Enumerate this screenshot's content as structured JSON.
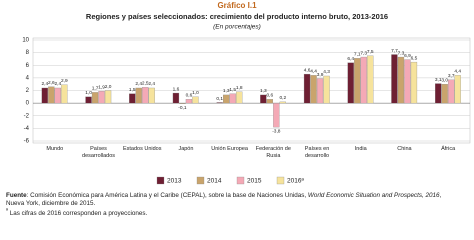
{
  "chart_data": {
    "type": "bar",
    "label": "Gráfico I.1",
    "title": "Regiones y países seleccionados: crecimiento del producto interno bruto, 2013-2016",
    "subtitle": "(En porcentajes)",
    "categories": [
      "Mundo",
      "Países desarrollados",
      "Estados Unidos",
      "Japón",
      "Unión Europea",
      "Federación de Rusia",
      "Países en desarrollo",
      "India",
      "China",
      "África"
    ],
    "series": [
      {
        "name": "2013",
        "color": "#6e1f33",
        "values": [
          2.4,
          1.0,
          1.5,
          1.6,
          0.1,
          1.3,
          4.6,
          6.4,
          7.7,
          3.1
        ],
        "value_labels": [
          "2,4",
          "1,0",
          "1,5",
          "1,6",
          "0,1",
          "1,3",
          "4,6",
          "6,4",
          "7,7",
          "3,1"
        ]
      },
      {
        "name": "2014",
        "color": "#c9a46c",
        "values": [
          2.6,
          1.7,
          2.4,
          -0.1,
          1.3,
          0.6,
          4.4,
          7.1,
          7.3,
          3.0
        ],
        "value_labels": [
          "2,6",
          "1,7",
          "2,4",
          "-0,1",
          "1,3",
          "0,6",
          "4,4",
          "7,1",
          "7,3",
          "3,0"
        ]
      },
      {
        "name": "2015",
        "color": "#f4a9b6",
        "values": [
          2.4,
          1.9,
          2.5,
          0.6,
          1.5,
          -3.8,
          3.9,
          7.3,
          6.9,
          3.7
        ],
        "value_labels": [
          "2,4",
          "1,9",
          "2,5",
          "0,6",
          "1,5",
          "-3,8",
          "3,9",
          "7,3",
          "6,9",
          "3,7"
        ]
      },
      {
        "name": "2016ª",
        "color": "#f6e39c",
        "values": [
          2.9,
          2.0,
          2.4,
          1.0,
          1.8,
          0.2,
          4.3,
          7.5,
          6.5,
          4.4
        ],
        "value_labels": [
          "2,9",
          "2,0",
          "2,4",
          "1,0",
          "1,8",
          "0,2",
          "4,3",
          "7,5",
          "6,5",
          "4,4"
        ]
      }
    ],
    "ylim": [
      -6,
      10
    ],
    "yticks": [
      -6,
      -4,
      -2,
      0,
      2,
      4,
      6,
      8,
      10
    ],
    "grid": true,
    "source_label": "Fuente",
    "source_parts": [
      "Comisión Económica para América Latina y el Caribe (CEPAL), sobre la base de Naciones Unidas, ",
      "World Economic Situation and Prospects, 2016",
      ", Nueva York, diciembre de 2015."
    ],
    "note_marker": "ª",
    "note": "Las cifras de 2016 corresponden a proyecciones."
  }
}
